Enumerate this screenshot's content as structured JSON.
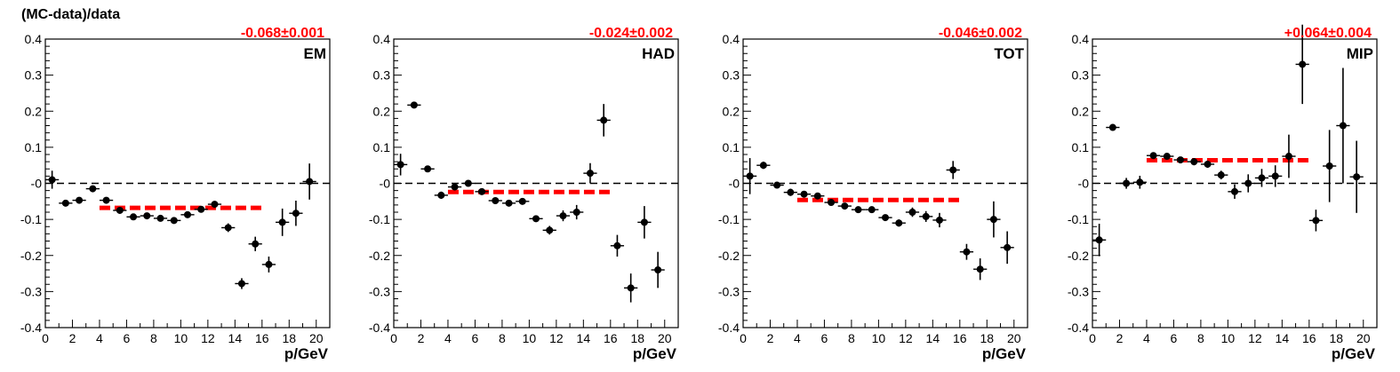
{
  "figure": {
    "ylabel": "(MC-data)/data"
  },
  "chart_data": [
    {
      "type": "scatter",
      "panel_label": "EM",
      "fit_label": "-0.068±0.001",
      "fit_value": -0.068,
      "fit_range": [
        4,
        16
      ],
      "xlabel": "p/GeV",
      "xlim": [
        0,
        21
      ],
      "ylim": [
        -0.4,
        0.4
      ],
      "x_ticks": [
        "0",
        "2",
        "4",
        "6",
        "8",
        "10",
        "12",
        "14",
        "16",
        "18",
        "20"
      ],
      "y_ticks": [
        "-0.4",
        "-0.3",
        "-0.2",
        "-0.1",
        "-0",
        "0.1",
        "0.2",
        "0.3",
        "0.4"
      ],
      "points": [
        {
          "x": 0.5,
          "y": 0.01,
          "err": 0.025
        },
        {
          "x": 1.5,
          "y": -0.055,
          "err": 0.006
        },
        {
          "x": 2.5,
          "y": -0.047,
          "err": 0.006
        },
        {
          "x": 3.5,
          "y": -0.015,
          "err": 0.006
        },
        {
          "x": 4.5,
          "y": -0.047,
          "err": 0.006
        },
        {
          "x": 5.5,
          "y": -0.075,
          "err": 0.006
        },
        {
          "x": 6.5,
          "y": -0.093,
          "err": 0.006
        },
        {
          "x": 7.5,
          "y": -0.09,
          "err": 0.006
        },
        {
          "x": 8.5,
          "y": -0.097,
          "err": 0.006
        },
        {
          "x": 9.5,
          "y": -0.103,
          "err": 0.006
        },
        {
          "x": 10.5,
          "y": -0.087,
          "err": 0.007
        },
        {
          "x": 11.5,
          "y": -0.072,
          "err": 0.007
        },
        {
          "x": 12.5,
          "y": -0.058,
          "err": 0.009
        },
        {
          "x": 13.5,
          "y": -0.123,
          "err": 0.012
        },
        {
          "x": 14.5,
          "y": -0.278,
          "err": 0.015
        },
        {
          "x": 15.5,
          "y": -0.168,
          "err": 0.02
        },
        {
          "x": 16.5,
          "y": -0.225,
          "err": 0.022
        },
        {
          "x": 17.5,
          "y": -0.108,
          "err": 0.038
        },
        {
          "x": 18.5,
          "y": -0.083,
          "err": 0.035
        },
        {
          "x": 19.5,
          "y": 0.005,
          "err": 0.05
        }
      ]
    },
    {
      "type": "scatter",
      "panel_label": "HAD",
      "fit_label": "-0.024±0.002",
      "fit_value": -0.024,
      "fit_range": [
        4,
        16
      ],
      "xlabel": "p/GeV",
      "xlim": [
        0,
        21
      ],
      "ylim": [
        -0.4,
        0.4
      ],
      "x_ticks": [
        "0",
        "2",
        "4",
        "6",
        "8",
        "10",
        "12",
        "14",
        "16",
        "18",
        "20"
      ],
      "y_ticks": [
        "-0.4",
        "-0.3",
        "-0.2",
        "-0.1",
        "-0",
        "0.1",
        "0.2",
        "0.3",
        "0.4"
      ],
      "points": [
        {
          "x": 0.5,
          "y": 0.052,
          "err": 0.03
        },
        {
          "x": 1.5,
          "y": 0.217,
          "err": 0.008
        },
        {
          "x": 2.5,
          "y": 0.04,
          "err": 0.007
        },
        {
          "x": 3.5,
          "y": -0.033,
          "err": 0.01
        },
        {
          "x": 4.5,
          "y": -0.01,
          "err": 0.008
        },
        {
          "x": 5.5,
          "y": 0.0,
          "err": 0.007
        },
        {
          "x": 6.5,
          "y": -0.023,
          "err": 0.007
        },
        {
          "x": 7.5,
          "y": -0.048,
          "err": 0.007
        },
        {
          "x": 8.5,
          "y": -0.055,
          "err": 0.007
        },
        {
          "x": 9.5,
          "y": -0.05,
          "err": 0.008
        },
        {
          "x": 10.5,
          "y": -0.098,
          "err": 0.009
        },
        {
          "x": 11.5,
          "y": -0.13,
          "err": 0.012
        },
        {
          "x": 12.5,
          "y": -0.09,
          "err": 0.015
        },
        {
          "x": 13.5,
          "y": -0.08,
          "err": 0.02
        },
        {
          "x": 14.5,
          "y": 0.028,
          "err": 0.028
        },
        {
          "x": 15.5,
          "y": 0.175,
          "err": 0.045
        },
        {
          "x": 16.5,
          "y": -0.173,
          "err": 0.03
        },
        {
          "x": 17.5,
          "y": -0.29,
          "err": 0.04
        },
        {
          "x": 18.5,
          "y": -0.108,
          "err": 0.045
        },
        {
          "x": 19.5,
          "y": -0.24,
          "err": 0.05
        }
      ]
    },
    {
      "type": "scatter",
      "panel_label": "TOT",
      "fit_label": "-0.046±0.002",
      "fit_value": -0.046,
      "fit_range": [
        4,
        16
      ],
      "xlabel": "p/GeV",
      "xlim": [
        0,
        21
      ],
      "ylim": [
        -0.4,
        0.4
      ],
      "x_ticks": [
        "0",
        "2",
        "4",
        "6",
        "8",
        "10",
        "12",
        "14",
        "16",
        "18",
        "20"
      ],
      "y_ticks": [
        "-0.4",
        "-0.3",
        "-0.2",
        "-0.1",
        "-0",
        "0.1",
        "0.2",
        "0.3",
        "0.4"
      ],
      "points": [
        {
          "x": 0.5,
          "y": 0.02,
          "err": 0.05
        },
        {
          "x": 1.5,
          "y": 0.05,
          "err": 0.01
        },
        {
          "x": 2.5,
          "y": -0.005,
          "err": 0.007
        },
        {
          "x": 3.5,
          "y": -0.025,
          "err": 0.01
        },
        {
          "x": 4.5,
          "y": -0.03,
          "err": 0.008
        },
        {
          "x": 5.5,
          "y": -0.035,
          "err": 0.007
        },
        {
          "x": 6.5,
          "y": -0.053,
          "err": 0.007
        },
        {
          "x": 7.5,
          "y": -0.063,
          "err": 0.007
        },
        {
          "x": 8.5,
          "y": -0.073,
          "err": 0.007
        },
        {
          "x": 9.5,
          "y": -0.073,
          "err": 0.008
        },
        {
          "x": 10.5,
          "y": -0.095,
          "err": 0.009
        },
        {
          "x": 11.5,
          "y": -0.11,
          "err": 0.01
        },
        {
          "x": 12.5,
          "y": -0.08,
          "err": 0.013
        },
        {
          "x": 13.5,
          "y": -0.092,
          "err": 0.015
        },
        {
          "x": 14.5,
          "y": -0.102,
          "err": 0.02
        },
        {
          "x": 15.5,
          "y": 0.037,
          "err": 0.025
        },
        {
          "x": 16.5,
          "y": -0.19,
          "err": 0.022
        },
        {
          "x": 17.5,
          "y": -0.238,
          "err": 0.03
        },
        {
          "x": 18.5,
          "y": -0.1,
          "err": 0.05
        },
        {
          "x": 19.5,
          "y": -0.178,
          "err": 0.045
        }
      ]
    },
    {
      "type": "scatter",
      "panel_label": "MIP",
      "fit_label": "+0.064±0.004",
      "fit_value": 0.064,
      "fit_range": [
        4,
        16
      ],
      "xlabel": "p/GeV",
      "xlim": [
        0,
        21
      ],
      "ylim": [
        -0.4,
        0.4
      ],
      "x_ticks": [
        "0",
        "2",
        "4",
        "6",
        "8",
        "10",
        "12",
        "14",
        "16",
        "18",
        "20"
      ],
      "y_ticks": [
        "-0.4",
        "-0.3",
        "-0.2",
        "-0.1",
        "-0",
        "0.1",
        "0.2",
        "0.3",
        "0.4"
      ],
      "points": [
        {
          "x": 0.5,
          "y": -0.157,
          "err": 0.045
        },
        {
          "x": 1.5,
          "y": 0.155,
          "err": 0.008
        },
        {
          "x": 2.5,
          "y": 0.0,
          "err": 0.015
        },
        {
          "x": 3.5,
          "y": 0.003,
          "err": 0.018
        },
        {
          "x": 4.5,
          "y": 0.077,
          "err": 0.007
        },
        {
          "x": 5.5,
          "y": 0.075,
          "err": 0.007
        },
        {
          "x": 6.5,
          "y": 0.065,
          "err": 0.007
        },
        {
          "x": 7.5,
          "y": 0.06,
          "err": 0.01
        },
        {
          "x": 8.5,
          "y": 0.053,
          "err": 0.01
        },
        {
          "x": 9.5,
          "y": 0.023,
          "err": 0.012
        },
        {
          "x": 10.5,
          "y": -0.023,
          "err": 0.02
        },
        {
          "x": 11.5,
          "y": 0.0,
          "err": 0.025
        },
        {
          "x": 12.5,
          "y": 0.015,
          "err": 0.025
        },
        {
          "x": 13.5,
          "y": 0.02,
          "err": 0.03
        },
        {
          "x": 14.5,
          "y": 0.075,
          "err": 0.06
        },
        {
          "x": 15.5,
          "y": 0.33,
          "err": 0.11
        },
        {
          "x": 16.5,
          "y": -0.103,
          "err": 0.03
        },
        {
          "x": 17.5,
          "y": 0.048,
          "err": 0.1
        },
        {
          "x": 18.5,
          "y": 0.16,
          "err": 0.16
        },
        {
          "x": 19.5,
          "y": 0.018,
          "err": 0.1
        }
      ]
    }
  ]
}
